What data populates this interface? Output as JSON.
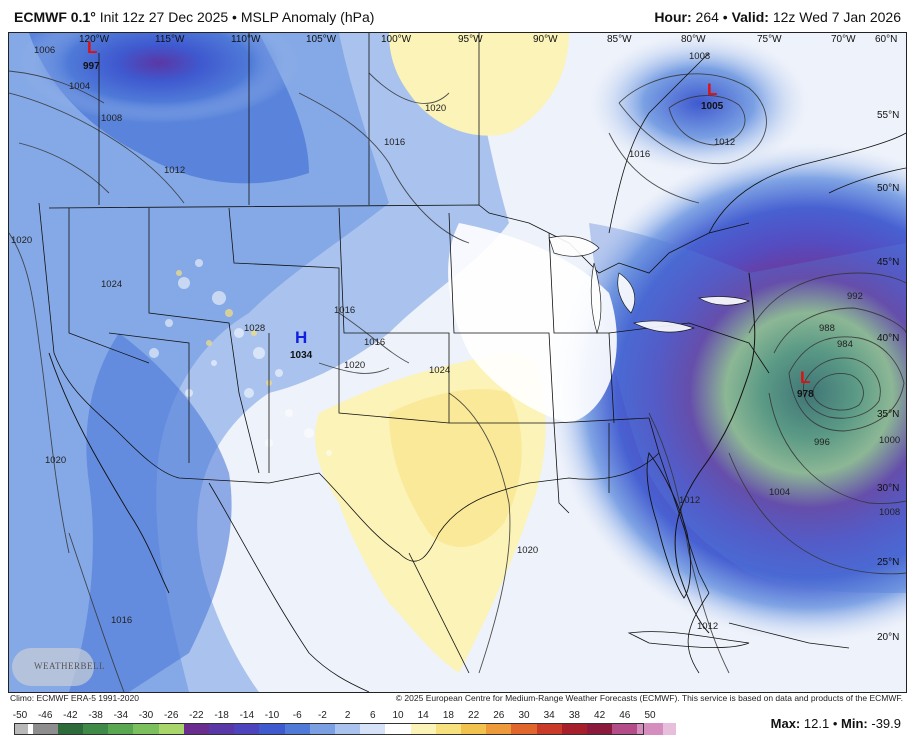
{
  "header": {
    "model": "ECMWF 0.1°",
    "init": "Init 12z 27 Dec 2025",
    "sep": "•",
    "field": "MSLP Anomaly (hPa)",
    "hour_label": "Hour:",
    "hour": "264",
    "valid_label": "Valid:",
    "valid": "12z Wed 7 Jan 2026"
  },
  "map": {
    "lon_labels": [
      "120°W",
      "115°W",
      "110°W",
      "105°W",
      "100°W",
      "95°W",
      "90°W",
      "85°W",
      "80°W",
      "75°W",
      "70°W",
      "60°N"
    ],
    "lat_labels": [
      "55°N",
      "50°N",
      "45°N",
      "40°N",
      "35°N",
      "30°N",
      "25°N",
      "20°N"
    ],
    "isobar_labels": [
      "1006",
      "1004",
      "1008",
      "1012",
      "1016",
      "1020",
      "1024",
      "1020",
      "1016",
      "1008",
      "1012",
      "1016",
      "1024",
      "1028",
      "1016",
      "1020",
      "1020",
      "1012",
      "1004",
      "1008",
      "1000",
      "996",
      "992",
      "988",
      "984",
      "1020",
      "1016",
      "1012"
    ],
    "centers": [
      {
        "type": "L",
        "value": "997",
        "color": "#e01010"
      },
      {
        "type": "L",
        "value": "1005",
        "color": "#e01010"
      },
      {
        "type": "H",
        "value": "1034",
        "color": "#1020e0"
      },
      {
        "type": "L",
        "value": "978",
        "color": "#e01010"
      }
    ],
    "logo_text": "WEATHERBELL"
  },
  "credits": {
    "climo": "Climo: ECMWF ERA-5 1991-2020",
    "copyright": "© 2025 European Centre for Medium-Range Weather Forecasts (ECMWF). This service is based on data and products of the ECMWF."
  },
  "colorbar": {
    "ticks": [
      "-50",
      "-46",
      "-42",
      "-38",
      "-34",
      "-30",
      "-26",
      "-22",
      "-18",
      "-14",
      "-10",
      "-6",
      "-2",
      "2",
      "6",
      "10",
      "14",
      "18",
      "22",
      "26",
      "30",
      "34",
      "38",
      "42",
      "46",
      "50"
    ],
    "colors": [
      "#b9b9b9",
      "#8e8e8e",
      "#2e6b3a",
      "#3f8a47",
      "#5aa752",
      "#7cc05d",
      "#a9d66b",
      "#6a2d8f",
      "#5a37a6",
      "#4d43bd",
      "#3f59cf",
      "#4f7ad8",
      "#7aa0e3",
      "#a9c3ee",
      "#d6e2f7",
      "#ffffff",
      "#fbf3b8",
      "#f7e07e",
      "#f2c24f",
      "#ec9a3a",
      "#e0662c",
      "#c93a28",
      "#a81f2c",
      "#8c1a3d",
      "#b54c8a",
      "#d58dbe",
      "#e7bfdc"
    ]
  },
  "stats": {
    "max_label": "Max:",
    "max": "12.1",
    "sep": "•",
    "min_label": "Min:",
    "min": "-39.9"
  }
}
